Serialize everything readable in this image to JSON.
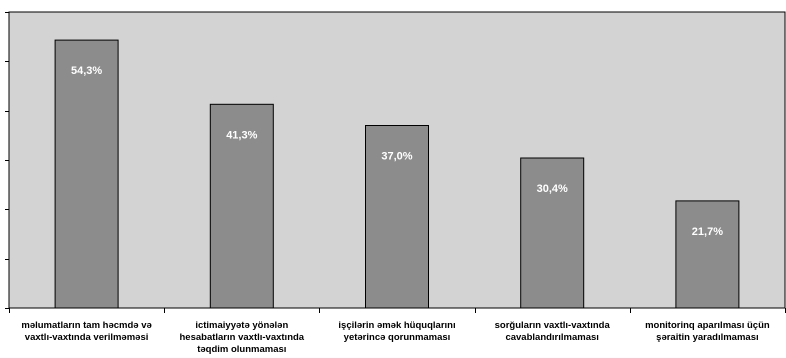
{
  "chart_data": {
    "type": "bar",
    "categories": [
      [
        "məlumatların tam həcmdə və",
        "vaxtlı-vaxtında verilməməsi"
      ],
      [
        "ictimaiyyətə yönələn",
        "hesabatların vaxtlı-vaxtında",
        "təqdim olunmaması"
      ],
      [
        "işçilərin əmək hüquqlarını",
        "yetərincə qorunmaması"
      ],
      [
        "sorğuların vaxtlı-vaxtında",
        "cavablandırılmaması"
      ],
      [
        "monitorinq aparılması üçün",
        "şəraitin yaradılmaması"
      ]
    ],
    "values": [
      54.3,
      41.3,
      37.0,
      30.4,
      21.7
    ],
    "data_labels": [
      "54,3%",
      "41,3%",
      "37,0%",
      "30,4%",
      "21,7%"
    ],
    "ylim": [
      0,
      60
    ],
    "y_tick_step": 10,
    "plot_background": "#d3d3d3",
    "bar_color": "#8c8c8c",
    "title": "",
    "xlabel": "",
    "ylabel": ""
  }
}
